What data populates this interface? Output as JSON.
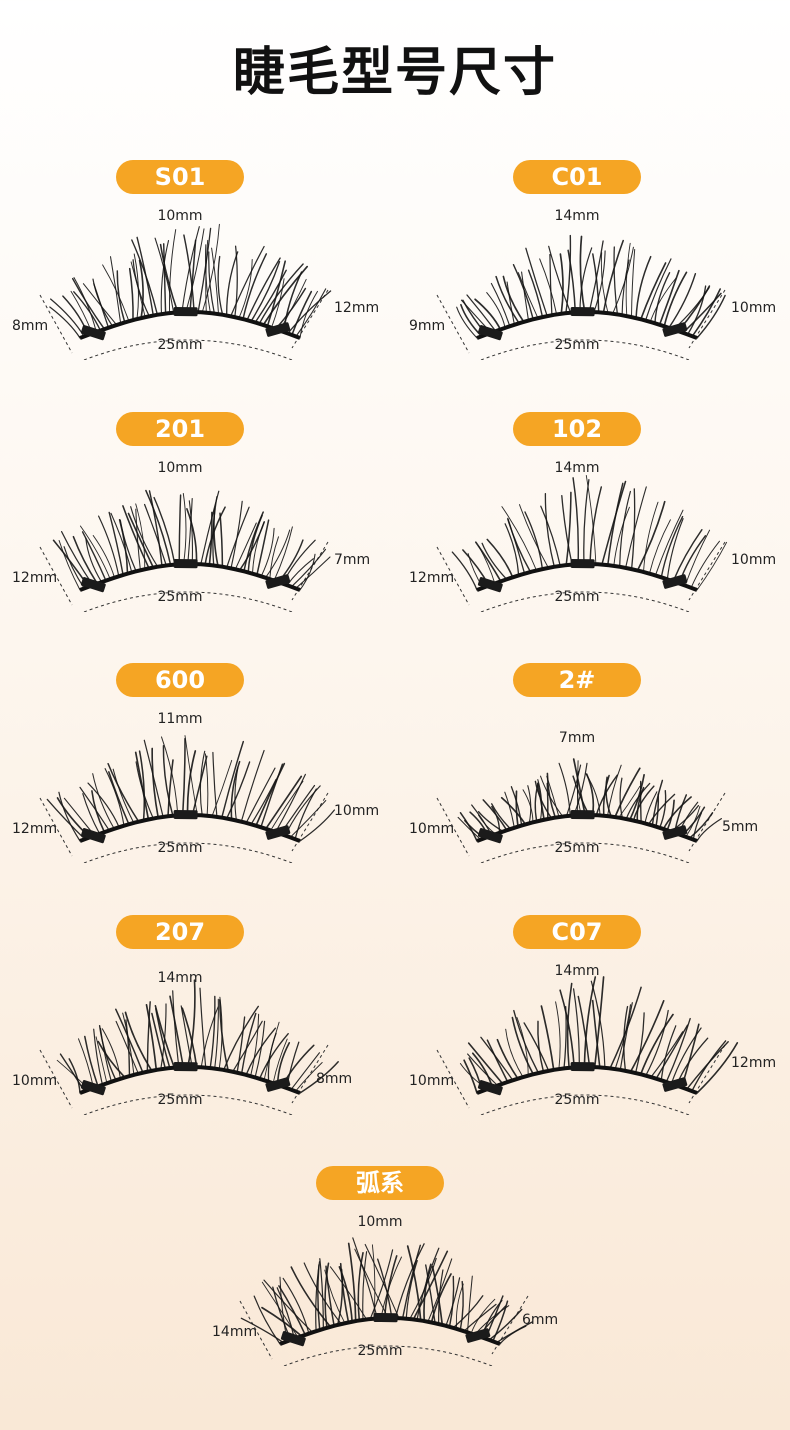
{
  "title": "睫毛型号尺寸",
  "colors": {
    "badge": "#f5a524",
    "lash": "#151515"
  },
  "items": [
    {
      "name": "S01",
      "top": "10mm",
      "left": "8mm",
      "right": "12mm",
      "bottom": "25mm"
    },
    {
      "name": "C01",
      "top": "14mm",
      "left": "9mm",
      "right": "10mm",
      "bottom": "25mm"
    },
    {
      "name": "201",
      "top": "10mm",
      "left": "12mm",
      "right": "7mm",
      "bottom": "25mm"
    },
    {
      "name": "102",
      "top": "14mm",
      "left": "12mm",
      "right": "10mm",
      "bottom": "25mm"
    },
    {
      "name": "600",
      "top": "11mm",
      "left": "12mm",
      "right": "10mm",
      "bottom": "25mm"
    },
    {
      "name": "2#",
      "top": "7mm",
      "left": "10mm",
      "right": "5mm",
      "bottom": "25mm"
    },
    {
      "name": "207",
      "top": "14mm",
      "left": "10mm",
      "right": "8mm",
      "bottom": "25mm"
    },
    {
      "name": "C07",
      "top": "14mm",
      "left": "10mm",
      "right": "12mm",
      "bottom": "25mm"
    },
    {
      "name": "弧系",
      "top": "10mm",
      "left": "14mm",
      "right": "6mm",
      "bottom": "25mm"
    }
  ]
}
